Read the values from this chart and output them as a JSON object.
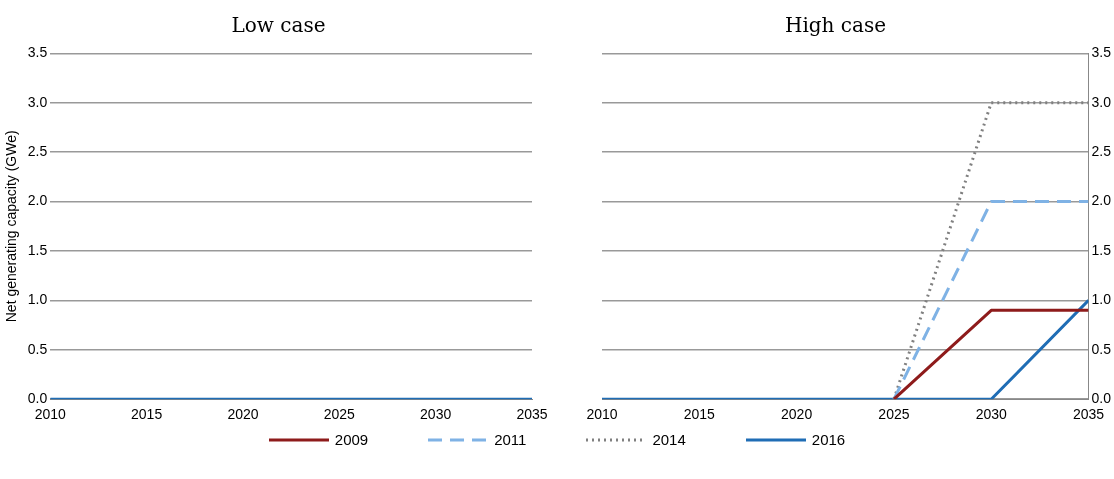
{
  "chart_data": [
    {
      "type": "line",
      "title": "Low case",
      "ylabel": "Net generating capacity (GWe)",
      "x": [
        2010,
        2015,
        2020,
        2025,
        2030,
        2035
      ],
      "xlim": [
        2010,
        2035
      ],
      "xticks": [
        2010,
        2015,
        2020,
        2025,
        2030,
        2035
      ],
      "ylim": [
        0,
        3.5
      ],
      "yticks": [
        {
          "value": 0,
          "label": "0.0"
        },
        {
          "value": 0.5,
          "label": "0.5"
        },
        {
          "value": 1,
          "label": "1.0"
        },
        {
          "value": 1.5,
          "label": "1.5"
        },
        {
          "value": 2,
          "label": "2.0"
        },
        {
          "value": 2.5,
          "label": "2.5"
        },
        {
          "value": 3,
          "label": "3.0"
        },
        {
          "value": 3.5,
          "label": "3.5"
        }
      ],
      "grid": "y",
      "marker": "none",
      "legend": "bottom",
      "series": [
        {
          "name": "2016",
          "color": "#1f6db5",
          "line_style": "solid",
          "values": [
            0,
            0,
            0,
            0,
            0,
            0
          ]
        }
      ]
    },
    {
      "type": "line",
      "title": "High case",
      "x": [
        2010,
        2015,
        2020,
        2025,
        2030,
        2035
      ],
      "xlim": [
        2010,
        2035
      ],
      "xticks": [
        2010,
        2015,
        2020,
        2025,
        2030,
        2035
      ],
      "y2lim": [
        0,
        3.5
      ],
      "y2ticks": [
        {
          "value": 0,
          "label": "0.0"
        },
        {
          "value": 0.5,
          "label": "0.5"
        },
        {
          "value": 1,
          "label": "1.0"
        },
        {
          "value": 1.5,
          "label": "1.5"
        },
        {
          "value": 2,
          "label": "2.0"
        },
        {
          "value": 2.5,
          "label": "2.5"
        },
        {
          "value": 3,
          "label": "3.0"
        },
        {
          "value": 3.5,
          "label": "3.5"
        }
      ],
      "grid": "y",
      "marker": "none",
      "legend": "bottom",
      "series": [
        {
          "name": "2009",
          "color": "#8e1b1b",
          "line_style": "solid",
          "axis": "y2",
          "values": [
            null,
            null,
            null,
            0,
            0.9,
            0.9
          ]
        },
        {
          "name": "2011",
          "color": "#7fb2e5",
          "line_style": "dashed",
          "axis": "y2",
          "values": [
            null,
            null,
            null,
            0,
            2,
            2
          ]
        },
        {
          "name": "2014",
          "color": "#808080",
          "line_style": "dotted",
          "axis": "y2",
          "values": [
            null,
            null,
            null,
            0,
            3,
            3
          ]
        },
        {
          "name": "2016",
          "color": "#1f6db5",
          "line_style": "solid",
          "axis": "y2",
          "values": [
            0,
            0,
            0,
            0,
            0,
            1
          ]
        }
      ]
    }
  ]
}
